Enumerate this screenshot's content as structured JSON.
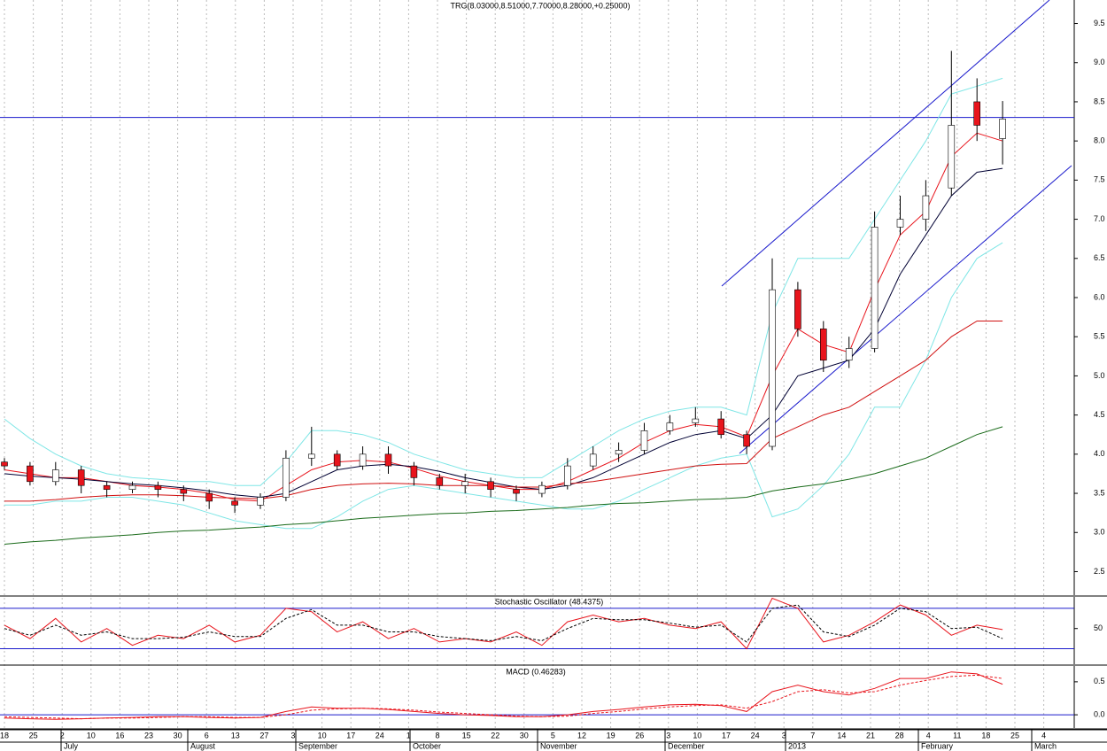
{
  "chart_data": [
    {
      "type": "candlestick",
      "title": "TRG(8.03000,8.51000,7.70000,8.28000,+0.25000)",
      "open": [
        3.9,
        3.85,
        3.65,
        3.8,
        3.6,
        3.55,
        3.6,
        3.55,
        3.5,
        3.4,
        3.35,
        3.45,
        3.95,
        4.0,
        3.85,
        4.0,
        3.85,
        3.7,
        3.6,
        3.65,
        3.55,
        3.5,
        3.6,
        3.85,
        4.0,
        4.05,
        4.3,
        4.4,
        4.45,
        4.25,
        4.1,
        6.1,
        5.6,
        5.2,
        5.35,
        6.9,
        7.0,
        7.4,
        8.5,
        8.03
      ],
      "high": [
        3.95,
        3.9,
        3.9,
        3.85,
        3.65,
        3.65,
        3.65,
        3.6,
        3.55,
        3.45,
        3.5,
        4.05,
        4.35,
        4.05,
        4.1,
        4.1,
        3.9,
        3.75,
        3.75,
        3.7,
        3.6,
        3.65,
        3.95,
        4.1,
        4.15,
        4.4,
        4.5,
        4.6,
        4.55,
        4.3,
        6.5,
        6.2,
        5.7,
        5.5,
        7.1,
        7.3,
        7.5,
        9.15,
        8.8,
        8.51
      ],
      "low": [
        3.8,
        3.6,
        3.6,
        3.5,
        3.45,
        3.5,
        3.45,
        3.4,
        3.3,
        3.25,
        3.3,
        3.4,
        3.85,
        3.8,
        3.8,
        3.75,
        3.6,
        3.55,
        3.5,
        3.45,
        3.4,
        3.45,
        3.55,
        3.8,
        3.9,
        4.0,
        4.25,
        4.35,
        4.2,
        4.0,
        4.05,
        5.5,
        5.05,
        5.1,
        5.3,
        6.8,
        6.85,
        7.3,
        8.0,
        7.7
      ],
      "close": [
        3.85,
        3.65,
        3.8,
        3.6,
        3.55,
        3.6,
        3.55,
        3.5,
        3.4,
        3.35,
        3.45,
        3.95,
        4.0,
        3.85,
        4.0,
        3.85,
        3.7,
        3.6,
        3.65,
        3.55,
        3.5,
        3.6,
        3.85,
        4.0,
        4.05,
        4.3,
        4.4,
        4.45,
        4.25,
        4.1,
        6.1,
        5.6,
        5.2,
        5.35,
        6.9,
        7.0,
        7.3,
        8.2,
        8.2,
        8.28
      ],
      "up_color": "#ffffff",
      "down_color": "#e8141c",
      "series": [
        {
          "color": "#e8141c",
          "values": [
            3.8,
            3.75,
            3.7,
            3.7,
            3.65,
            3.6,
            3.58,
            3.55,
            3.5,
            3.42,
            3.4,
            3.6,
            3.8,
            3.9,
            3.92,
            3.9,
            3.82,
            3.72,
            3.65,
            3.6,
            3.55,
            3.55,
            3.65,
            3.8,
            3.95,
            4.15,
            4.3,
            4.38,
            4.35,
            4.22,
            5.0,
            5.6,
            5.4,
            5.3,
            6.1,
            6.8,
            7.1,
            7.8,
            8.1,
            8.0
          ]
        },
        {
          "color": "#000033",
          "values": [
            3.75,
            3.72,
            3.7,
            3.68,
            3.65,
            3.62,
            3.6,
            3.57,
            3.53,
            3.48,
            3.45,
            3.5,
            3.65,
            3.8,
            3.85,
            3.87,
            3.84,
            3.78,
            3.7,
            3.64,
            3.58,
            3.55,
            3.6,
            3.7,
            3.85,
            4.0,
            4.15,
            4.25,
            4.3,
            4.2,
            4.5,
            5.0,
            5.1,
            5.2,
            5.6,
            6.3,
            6.8,
            7.3,
            7.6,
            7.65
          ]
        },
        {
          "color": "#7fe6e6",
          "values": [
            4.45,
            4.2,
            4.0,
            3.85,
            3.75,
            3.7,
            3.68,
            3.65,
            3.65,
            3.6,
            3.6,
            3.9,
            4.3,
            4.3,
            4.25,
            4.15,
            4.0,
            3.9,
            3.8,
            3.75,
            3.7,
            3.7,
            3.9,
            4.1,
            4.3,
            4.45,
            4.55,
            4.6,
            4.6,
            4.5,
            5.8,
            6.5,
            6.5,
            6.5,
            7.0,
            7.5,
            8.0,
            8.6,
            8.7,
            8.8
          ]
        },
        {
          "color": "#7fe6e6",
          "values": [
            3.35,
            3.35,
            3.4,
            3.4,
            3.45,
            3.45,
            3.4,
            3.35,
            3.25,
            3.15,
            3.1,
            3.05,
            3.05,
            3.2,
            3.4,
            3.55,
            3.6,
            3.55,
            3.5,
            3.45,
            3.4,
            3.35,
            3.3,
            3.3,
            3.4,
            3.55,
            3.7,
            3.85,
            3.95,
            4.0,
            3.2,
            3.3,
            3.6,
            4.0,
            4.6,
            4.6,
            5.2,
            6.0,
            6.5,
            6.7
          ]
        },
        {
          "color": "#d01010",
          "values": [
            3.4,
            3.4,
            3.42,
            3.45,
            3.47,
            3.48,
            3.48,
            3.47,
            3.45,
            3.44,
            3.43,
            3.47,
            3.55,
            3.6,
            3.62,
            3.63,
            3.62,
            3.6,
            3.6,
            3.6,
            3.58,
            3.58,
            3.62,
            3.65,
            3.7,
            3.75,
            3.8,
            3.85,
            3.87,
            3.88,
            4.2,
            4.35,
            4.5,
            4.6,
            4.8,
            5.0,
            5.2,
            5.5,
            5.7,
            5.7
          ]
        },
        {
          "color": "#1a6b1a",
          "values": [
            2.85,
            2.88,
            2.9,
            2.93,
            2.95,
            2.97,
            3.0,
            3.02,
            3.03,
            3.05,
            3.07,
            3.1,
            3.12,
            3.15,
            3.18,
            3.2,
            3.22,
            3.24,
            3.25,
            3.27,
            3.28,
            3.3,
            3.32,
            3.35,
            3.37,
            3.38,
            3.4,
            3.42,
            3.43,
            3.45,
            3.53,
            3.58,
            3.62,
            3.68,
            3.75,
            3.85,
            3.95,
            4.1,
            4.25,
            4.35
          ]
        }
      ],
      "hline": 8.3,
      "hline_color": "#1a1acc",
      "ylim": [
        2.2,
        9.8
      ],
      "yticks": [
        2.5,
        {
          "value": 3,
          "label": "3.0"
        },
        3.5,
        {
          "value": 4,
          "label": "4.0"
        },
        4.5,
        {
          "value": 5,
          "label": "5.0"
        },
        5.5,
        {
          "value": 6,
          "label": "6.0"
        },
        6.5,
        {
          "value": 7,
          "label": "7.0"
        },
        7.5,
        {
          "value": 8,
          "label": "8.0"
        },
        8.5,
        {
          "value": 9,
          "label": "9.0"
        },
        9.5
      ],
      "xtick_labels": [
        "18",
        "25",
        "2",
        "10",
        "16",
        "23",
        "30",
        "6",
        "13",
        "27",
        "3",
        "10",
        "17",
        "24",
        "1",
        "8",
        "15",
        "22",
        "30",
        "5",
        "12",
        "19",
        "26",
        "3",
        "10",
        "17",
        "24",
        "3",
        "7",
        "14",
        "21",
        "28",
        "4",
        "11",
        "18",
        "25",
        "4"
      ],
      "month_labels": [
        "July",
        "August",
        "September",
        "October",
        "November",
        "December",
        "2013",
        "February",
        "March"
      ]
    },
    {
      "type": "line",
      "title": "Stochastic Oscillator (48.4375)",
      "series": [
        {
          "color": "#e8141c",
          "values": [
            55,
            35,
            65,
            30,
            50,
            25,
            40,
            35,
            55,
            30,
            40,
            80,
            75,
            45,
            60,
            35,
            50,
            30,
            35,
            30,
            45,
            25,
            60,
            70,
            60,
            65,
            55,
            50,
            60,
            20,
            95,
            80,
            30,
            40,
            60,
            85,
            70,
            40,
            55,
            48.4375
          ]
        },
        {
          "color": "#000000",
          "dashed": true,
          "values": [
            50,
            40,
            55,
            40,
            45,
            35,
            35,
            37,
            45,
            38,
            38,
            65,
            78,
            55,
            55,
            45,
            45,
            38,
            35,
            32,
            38,
            32,
            50,
            65,
            63,
            63,
            58,
            52,
            55,
            30,
            80,
            85,
            45,
            38,
            55,
            80,
            75,
            50,
            52,
            35
          ]
        }
      ],
      "levels": [
        20,
        80
      ],
      "level_color": "#1a1acc",
      "ylim": [
        -3,
        97
      ],
      "yticks": [
        50
      ]
    },
    {
      "type": "line",
      "title": "MACD (0.46283)",
      "series": [
        {
          "color": "#e8141c",
          "values": [
            -0.05,
            -0.06,
            -0.07,
            -0.06,
            -0.05,
            -0.04,
            -0.03,
            -0.03,
            -0.04,
            -0.05,
            -0.04,
            0.05,
            0.12,
            0.1,
            0.1,
            0.08,
            0.05,
            0.02,
            0.0,
            -0.01,
            -0.03,
            -0.03,
            0.0,
            0.05,
            0.08,
            0.12,
            0.15,
            0.16,
            0.14,
            0.05,
            0.35,
            0.45,
            0.35,
            0.3,
            0.4,
            0.55,
            0.55,
            0.65,
            0.62,
            0.46283
          ]
        },
        {
          "color": "#e8141c",
          "dashed": true,
          "values": [
            -0.03,
            -0.04,
            -0.05,
            -0.06,
            -0.05,
            -0.05,
            -0.04,
            -0.03,
            -0.03,
            -0.04,
            -0.04,
            0.0,
            0.07,
            0.09,
            0.1,
            0.09,
            0.07,
            0.04,
            0.02,
            0.0,
            -0.02,
            -0.03,
            -0.02,
            0.02,
            0.05,
            0.09,
            0.12,
            0.14,
            0.15,
            0.1,
            0.2,
            0.35,
            0.38,
            0.33,
            0.35,
            0.45,
            0.52,
            0.58,
            0.6,
            0.55
          ]
        }
      ],
      "levels": [
        0
      ],
      "level_color": "#1a1acc",
      "ylim": [
        -0.2,
        0.74
      ],
      "yticks": [
        {
          "value": 0,
          "label": "0.0"
        },
        0.5
      ]
    }
  ]
}
